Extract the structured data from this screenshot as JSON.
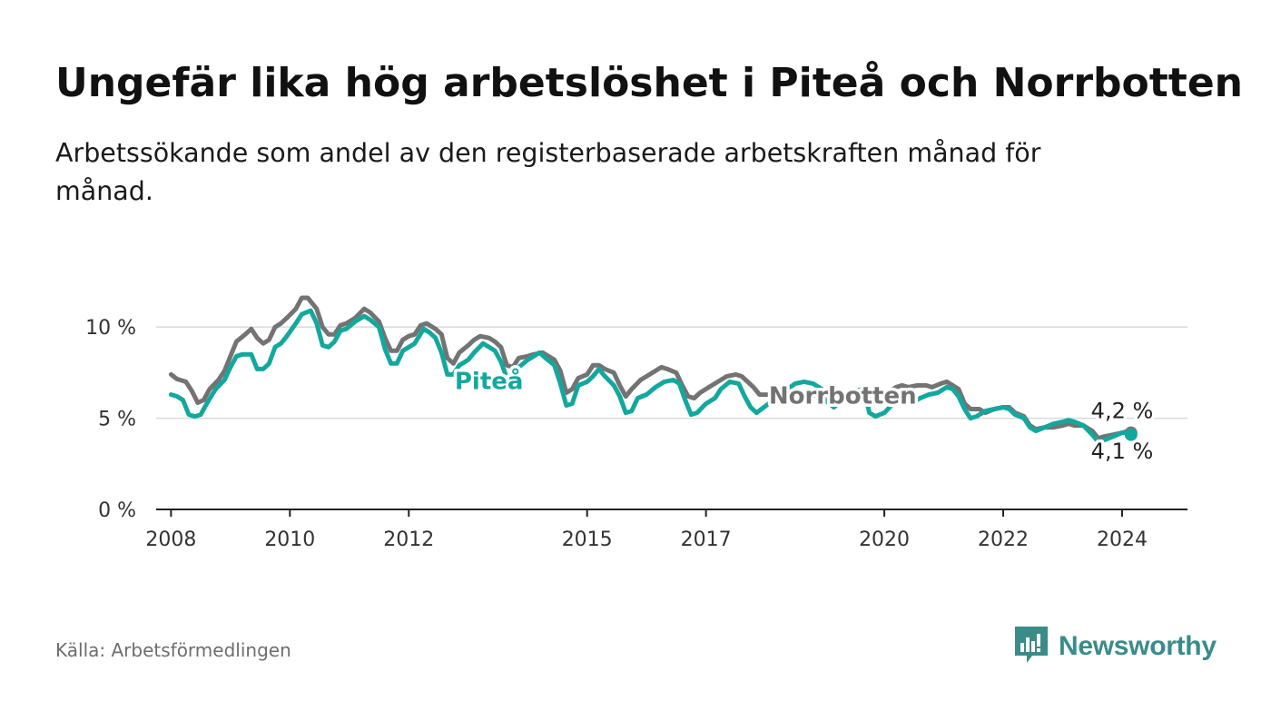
{
  "header": {
    "title": "Ungefär lika hög arbetslöshet i Piteå och Norrbotten",
    "subtitle": "Arbetssökande som andel av den registerbaserade arbetskraften månad för månad."
  },
  "footer": {
    "source": "Källa: Arbetsförmedlingen",
    "brand": "Newsworthy",
    "brand_color": "#3a8c88"
  },
  "colors": {
    "pitea": "#13a89e",
    "norrbotten": "#737373",
    "grid": "#d9d9d9",
    "axis": "#222222"
  },
  "chart_data": {
    "type": "line",
    "title": "Ungefär lika hög arbetslöshet i Piteå och Norrbotten",
    "xlabel": "",
    "ylabel": "",
    "xlim": [
      2007.75,
      2025.1
    ],
    "ylim": [
      0,
      12
    ],
    "y_ticks": [
      0,
      5,
      10
    ],
    "y_tick_labels": [
      "0 %",
      "5 %",
      "10 %"
    ],
    "x_ticks": [
      2008,
      2010,
      2012,
      2015,
      2017,
      2020,
      2022,
      2024
    ],
    "x_tick_labels": [
      "2008",
      "2010",
      "2012",
      "2015",
      "2017",
      "2020",
      "2022",
      "2024"
    ],
    "grid": true,
    "series": [
      {
        "name": "Norrbotten",
        "label": "Norrbotten",
        "end_label": "4,2 %",
        "end_value": 4.2,
        "points": [
          [
            2008.0,
            7.4
          ],
          [
            2008.1,
            7.15
          ],
          [
            2008.25,
            7.0
          ],
          [
            2008.35,
            6.5
          ],
          [
            2008.45,
            5.85
          ],
          [
            2008.55,
            6.0
          ],
          [
            2008.65,
            6.6
          ],
          [
            2008.8,
            7.1
          ],
          [
            2008.9,
            7.6
          ],
          [
            2009.0,
            8.4
          ],
          [
            2009.1,
            9.2
          ],
          [
            2009.25,
            9.6
          ],
          [
            2009.35,
            9.9
          ],
          [
            2009.45,
            9.4
          ],
          [
            2009.55,
            9.1
          ],
          [
            2009.65,
            9.3
          ],
          [
            2009.75,
            10.0
          ],
          [
            2009.85,
            10.2
          ],
          [
            2009.95,
            10.5
          ],
          [
            2010.1,
            11.0
          ],
          [
            2010.2,
            11.6
          ],
          [
            2010.3,
            11.6
          ],
          [
            2010.45,
            11.0
          ],
          [
            2010.55,
            10.0
          ],
          [
            2010.65,
            9.6
          ],
          [
            2010.75,
            9.6
          ],
          [
            2010.85,
            10.1
          ],
          [
            2010.95,
            10.2
          ],
          [
            2011.1,
            10.5
          ],
          [
            2011.25,
            11.0
          ],
          [
            2011.35,
            10.8
          ],
          [
            2011.5,
            10.3
          ],
          [
            2011.6,
            9.4
          ],
          [
            2011.7,
            8.7
          ],
          [
            2011.8,
            8.7
          ],
          [
            2011.9,
            9.3
          ],
          [
            2012.0,
            9.5
          ],
          [
            2012.1,
            9.6
          ],
          [
            2012.2,
            10.1
          ],
          [
            2012.3,
            10.2
          ],
          [
            2012.45,
            9.9
          ],
          [
            2012.55,
            9.6
          ],
          [
            2012.65,
            8.3
          ],
          [
            2012.75,
            8.0
          ],
          [
            2012.85,
            8.6
          ],
          [
            2013.0,
            9.0
          ],
          [
            2013.1,
            9.3
          ],
          [
            2013.2,
            9.5
          ],
          [
            2013.35,
            9.4
          ],
          [
            2013.45,
            9.2
          ],
          [
            2013.55,
            8.9
          ],
          [
            2013.65,
            7.9
          ],
          [
            2013.75,
            7.8
          ],
          [
            2013.85,
            8.3
          ],
          [
            2014.0,
            8.4
          ],
          [
            2014.1,
            8.5
          ],
          [
            2014.25,
            8.6
          ],
          [
            2014.35,
            8.4
          ],
          [
            2014.45,
            8.2
          ],
          [
            2014.55,
            7.6
          ],
          [
            2014.65,
            6.4
          ],
          [
            2014.75,
            6.6
          ],
          [
            2014.85,
            7.2
          ],
          [
            2015.0,
            7.4
          ],
          [
            2015.1,
            7.9
          ],
          [
            2015.2,
            7.9
          ],
          [
            2015.3,
            7.7
          ],
          [
            2015.45,
            7.5
          ],
          [
            2015.55,
            6.8
          ],
          [
            2015.65,
            6.2
          ],
          [
            2015.75,
            6.6
          ],
          [
            2015.9,
            7.1
          ],
          [
            2016.0,
            7.3
          ],
          [
            2016.15,
            7.6
          ],
          [
            2016.25,
            7.8
          ],
          [
            2016.35,
            7.7
          ],
          [
            2016.5,
            7.5
          ],
          [
            2016.6,
            6.8
          ],
          [
            2016.7,
            6.2
          ],
          [
            2016.8,
            6.1
          ],
          [
            2016.9,
            6.4
          ],
          [
            2017.05,
            6.7
          ],
          [
            2017.2,
            7.0
          ],
          [
            2017.35,
            7.3
          ],
          [
            2017.5,
            7.4
          ],
          [
            2017.6,
            7.3
          ],
          [
            2017.7,
            7.0
          ],
          [
            2017.8,
            6.7
          ],
          [
            2017.9,
            6.3
          ],
          [
            2020.0,
            6.2
          ],
          [
            2020.1,
            6.5
          ],
          [
            2020.2,
            6.7
          ],
          [
            2020.3,
            6.8
          ],
          [
            2020.4,
            6.7
          ],
          [
            2020.55,
            6.8
          ],
          [
            2020.7,
            6.8
          ],
          [
            2020.8,
            6.7
          ],
          [
            2020.95,
            6.9
          ],
          [
            2021.05,
            7.0
          ],
          [
            2021.15,
            6.8
          ],
          [
            2021.25,
            6.6
          ],
          [
            2021.35,
            5.8
          ],
          [
            2021.45,
            5.5
          ],
          [
            2021.6,
            5.5
          ],
          [
            2021.7,
            5.3
          ],
          [
            2021.85,
            5.5
          ],
          [
            2022.0,
            5.6
          ],
          [
            2022.1,
            5.6
          ],
          [
            2022.2,
            5.3
          ],
          [
            2022.35,
            5.1
          ],
          [
            2022.45,
            4.6
          ],
          [
            2022.55,
            4.4
          ],
          [
            2022.7,
            4.5
          ],
          [
            2022.85,
            4.5
          ],
          [
            2023.0,
            4.6
          ],
          [
            2023.1,
            4.7
          ],
          [
            2023.2,
            4.6
          ],
          [
            2023.35,
            4.6
          ],
          [
            2023.5,
            4.3
          ],
          [
            2023.6,
            3.9
          ],
          [
            2023.7,
            4.0
          ],
          [
            2023.85,
            4.1
          ],
          [
            2024.0,
            4.2
          ],
          [
            2024.1,
            4.3
          ],
          [
            2024.15,
            4.2
          ]
        ]
      },
      {
        "name": "Piteå",
        "label": "Piteå",
        "end_label": "4,1 %",
        "end_value": 4.1,
        "points": [
          [
            2008.0,
            6.3
          ],
          [
            2008.1,
            6.2
          ],
          [
            2008.2,
            6.0
          ],
          [
            2008.3,
            5.2
          ],
          [
            2008.4,
            5.1
          ],
          [
            2008.5,
            5.2
          ],
          [
            2008.6,
            5.8
          ],
          [
            2008.75,
            6.6
          ],
          [
            2008.9,
            7.1
          ],
          [
            2009.0,
            7.8
          ],
          [
            2009.1,
            8.4
          ],
          [
            2009.2,
            8.5
          ],
          [
            2009.35,
            8.5
          ],
          [
            2009.45,
            7.7
          ],
          [
            2009.55,
            7.7
          ],
          [
            2009.65,
            8.0
          ],
          [
            2009.75,
            8.9
          ],
          [
            2009.85,
            9.1
          ],
          [
            2009.95,
            9.5
          ],
          [
            2010.1,
            10.2
          ],
          [
            2010.2,
            10.7
          ],
          [
            2010.35,
            10.9
          ],
          [
            2010.45,
            10.2
          ],
          [
            2010.55,
            9.0
          ],
          [
            2010.65,
            8.9
          ],
          [
            2010.75,
            9.2
          ],
          [
            2010.85,
            9.8
          ],
          [
            2010.95,
            9.9
          ],
          [
            2011.1,
            10.3
          ],
          [
            2011.25,
            10.6
          ],
          [
            2011.35,
            10.4
          ],
          [
            2011.5,
            10.0
          ],
          [
            2011.6,
            8.8
          ],
          [
            2011.7,
            8.0
          ],
          [
            2011.8,
            8.0
          ],
          [
            2011.9,
            8.7
          ],
          [
            2012.0,
            8.9
          ],
          [
            2012.1,
            9.1
          ],
          [
            2012.25,
            9.9
          ],
          [
            2012.35,
            9.7
          ],
          [
            2012.45,
            9.4
          ],
          [
            2012.55,
            8.6
          ],
          [
            2012.65,
            7.4
          ],
          [
            2012.75,
            7.4
          ],
          [
            2012.85,
            7.9
          ],
          [
            2013.0,
            8.2
          ],
          [
            2013.1,
            8.6
          ],
          [
            2013.25,
            9.1
          ],
          [
            2013.35,
            8.9
          ],
          [
            2013.45,
            8.7
          ],
          [
            2013.55,
            8.1
          ],
          [
            2013.65,
            7.2
          ],
          [
            2013.75,
            7.3
          ],
          [
            2013.85,
            7.8
          ],
          [
            2014.0,
            8.2
          ],
          [
            2014.1,
            8.4
          ],
          [
            2014.2,
            8.6
          ],
          [
            2014.3,
            8.3
          ],
          [
            2014.45,
            7.9
          ],
          [
            2014.55,
            6.9
          ],
          [
            2014.65,
            5.7
          ],
          [
            2014.75,
            5.8
          ],
          [
            2014.85,
            6.8
          ],
          [
            2015.0,
            7.0
          ],
          [
            2015.1,
            7.3
          ],
          [
            2015.2,
            7.7
          ],
          [
            2015.3,
            7.3
          ],
          [
            2015.45,
            6.8
          ],
          [
            2015.55,
            6.2
          ],
          [
            2015.65,
            5.3
          ],
          [
            2015.75,
            5.4
          ],
          [
            2015.85,
            6.1
          ],
          [
            2016.0,
            6.3
          ],
          [
            2016.15,
            6.7
          ],
          [
            2016.3,
            7.0
          ],
          [
            2016.45,
            7.1
          ],
          [
            2016.55,
            6.9
          ],
          [
            2016.65,
            6.0
          ],
          [
            2016.75,
            5.2
          ],
          [
            2016.85,
            5.3
          ],
          [
            2017.0,
            5.8
          ],
          [
            2017.15,
            6.1
          ],
          [
            2017.25,
            6.6
          ],
          [
            2017.4,
            7.0
          ],
          [
            2017.55,
            6.9
          ],
          [
            2017.65,
            6.2
          ],
          [
            2017.75,
            5.6
          ],
          [
            2017.85,
            5.3
          ],
          [
            2018.5,
            6.9
          ],
          [
            2018.65,
            7.0
          ],
          [
            2018.8,
            6.9
          ],
          [
            2018.95,
            6.6
          ],
          [
            2019.0,
            6.0
          ],
          [
            2019.15,
            5.6
          ],
          [
            2019.5,
            6.5
          ],
          [
            2019.65,
            6.6
          ],
          [
            2019.75,
            5.3
          ],
          [
            2019.85,
            5.1
          ],
          [
            2020.0,
            5.3
          ],
          [
            2020.15,
            5.8
          ],
          [
            2020.3,
            6.1
          ],
          [
            2020.45,
            5.8
          ],
          [
            2020.6,
            6.1
          ],
          [
            2020.75,
            6.3
          ],
          [
            2020.9,
            6.4
          ],
          [
            2021.05,
            6.7
          ],
          [
            2021.15,
            6.6
          ],
          [
            2021.25,
            6.2
          ],
          [
            2021.35,
            5.5
          ],
          [
            2021.45,
            5.0
          ],
          [
            2021.55,
            5.1
          ],
          [
            2021.7,
            5.4
          ],
          [
            2021.85,
            5.5
          ],
          [
            2022.0,
            5.6
          ],
          [
            2022.1,
            5.5
          ],
          [
            2022.2,
            5.2
          ],
          [
            2022.35,
            5.0
          ],
          [
            2022.45,
            4.5
          ],
          [
            2022.55,
            4.3
          ],
          [
            2022.7,
            4.5
          ],
          [
            2022.85,
            4.7
          ],
          [
            2023.0,
            4.8
          ],
          [
            2023.1,
            4.9
          ],
          [
            2023.2,
            4.8
          ],
          [
            2023.35,
            4.6
          ],
          [
            2023.5,
            4.1
          ],
          [
            2023.6,
            3.7
          ],
          [
            2023.7,
            3.8
          ],
          [
            2023.85,
            4.0
          ],
          [
            2024.0,
            4.2
          ],
          [
            2024.1,
            4.2
          ],
          [
            2024.15,
            4.1
          ]
        ]
      }
    ]
  }
}
